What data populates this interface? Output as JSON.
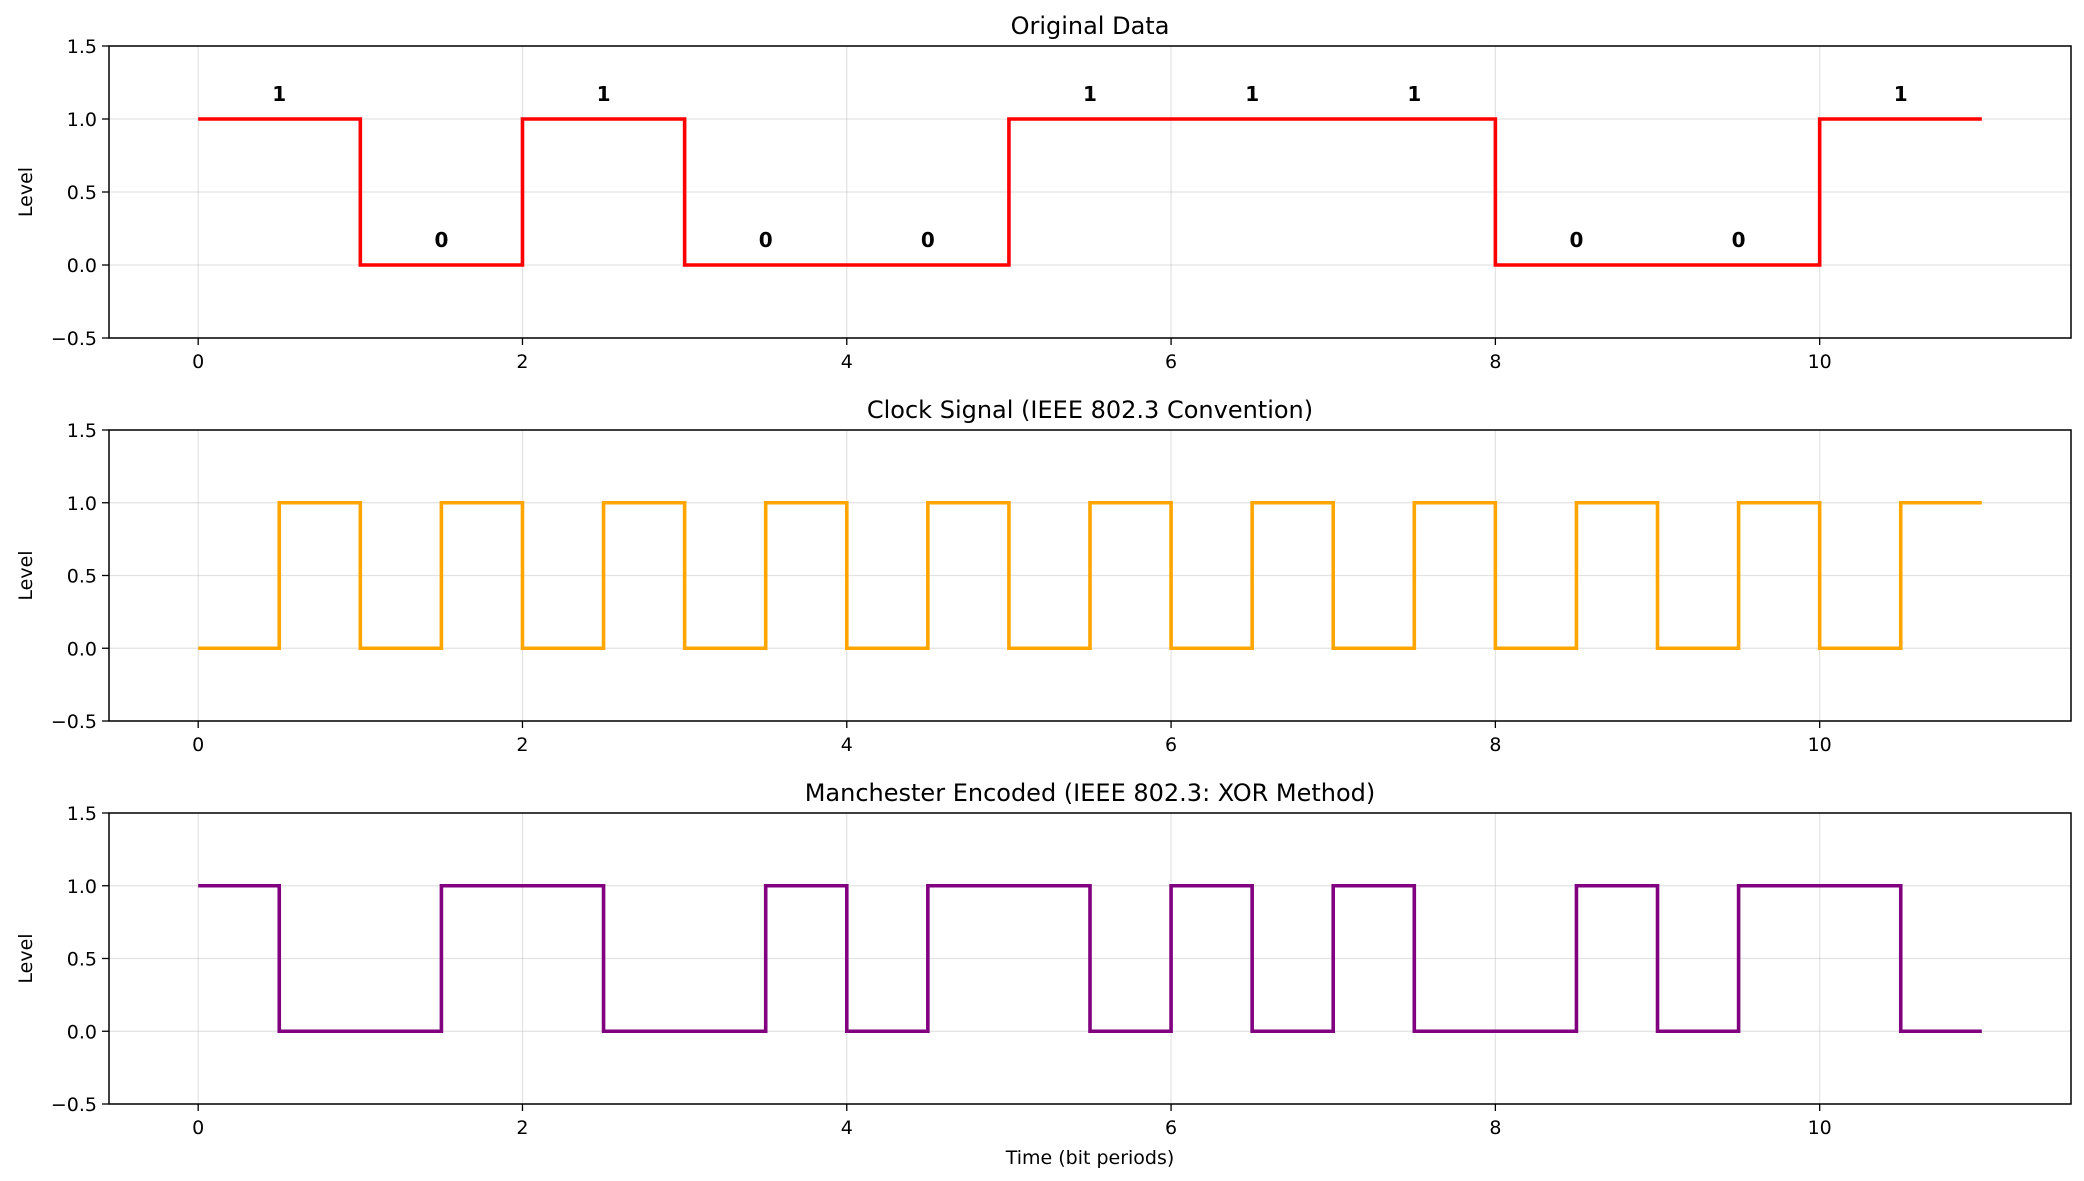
{
  "chart_data": [
    {
      "type": "line",
      "step": true,
      "title": "Original Data",
      "xlabel": "",
      "ylabel": "Level",
      "xlim": [
        -0.55,
        11.55
      ],
      "ylim": [
        -0.5,
        1.5
      ],
      "xticks": [
        0,
        2,
        4,
        6,
        8,
        10
      ],
      "yticks": [
        "−0.5",
        "0.0",
        "0.5",
        "1.0",
        "1.5"
      ],
      "yticks_values": [
        -0.5,
        0.0,
        0.5,
        1.0,
        1.5
      ],
      "grid": true,
      "series": [
        {
          "color": "#ff0000",
          "x": [
            0,
            1,
            2,
            3,
            4,
            5,
            6,
            7,
            8,
            9,
            10,
            11
          ],
          "y": [
            1,
            0,
            1,
            0,
            0,
            1,
            1,
            1,
            0,
            0,
            1,
            1
          ]
        }
      ],
      "annotations": [
        {
          "x": 0.5,
          "text": "1"
        },
        {
          "x": 1.5,
          "text": "0"
        },
        {
          "x": 2.5,
          "text": "1"
        },
        {
          "x": 3.5,
          "text": "0"
        },
        {
          "x": 4.5,
          "text": "0"
        },
        {
          "x": 5.5,
          "text": "1"
        },
        {
          "x": 6.5,
          "text": "1"
        },
        {
          "x": 7.5,
          "text": "1"
        },
        {
          "x": 8.5,
          "text": "0"
        },
        {
          "x": 9.5,
          "text": "0"
        },
        {
          "x": 10.5,
          "text": "1"
        }
      ]
    },
    {
      "type": "line",
      "step": true,
      "title": "Clock Signal (IEEE 802.3 Convention)",
      "xlabel": "",
      "ylabel": "Level",
      "xlim": [
        -0.55,
        11.55
      ],
      "ylim": [
        -0.5,
        1.5
      ],
      "xticks": [
        0,
        2,
        4,
        6,
        8,
        10
      ],
      "yticks": [
        "−0.5",
        "0.0",
        "0.5",
        "1.0",
        "1.5"
      ],
      "yticks_values": [
        -0.5,
        0.0,
        0.5,
        1.0,
        1.5
      ],
      "grid": true,
      "series": [
        {
          "color": "#ffa500",
          "x": [
            0,
            0.5,
            1,
            1.5,
            2,
            2.5,
            3,
            3.5,
            4,
            4.5,
            5,
            5.5,
            6,
            6.5,
            7,
            7.5,
            8,
            8.5,
            9,
            9.5,
            10,
            10.5,
            11
          ],
          "y": [
            0,
            1,
            0,
            1,
            0,
            1,
            0,
            1,
            0,
            1,
            0,
            1,
            0,
            1,
            0,
            1,
            0,
            1,
            0,
            1,
            0,
            1,
            1
          ]
        }
      ],
      "annotations": []
    },
    {
      "type": "line",
      "step": true,
      "title": "Manchester Encoded (IEEE 802.3: XOR Method)",
      "xlabel": "Time (bit periods)",
      "ylabel": "Level",
      "xlim": [
        -0.55,
        11.55
      ],
      "ylim": [
        -0.5,
        1.5
      ],
      "xticks": [
        0,
        2,
        4,
        6,
        8,
        10
      ],
      "yticks": [
        "−0.5",
        "0.0",
        "0.5",
        "1.0",
        "1.5"
      ],
      "yticks_values": [
        -0.5,
        0.0,
        0.5,
        1.0,
        1.5
      ],
      "grid": true,
      "series": [
        {
          "color": "#800080",
          "x": [
            0,
            0.5,
            1,
            1.5,
            2,
            2.5,
            3,
            3.5,
            4,
            4.5,
            5,
            5.5,
            6,
            6.5,
            7,
            7.5,
            8,
            8.5,
            9,
            9.5,
            10,
            10.5,
            11
          ],
          "y": [
            1,
            0,
            0,
            1,
            1,
            0,
            0,
            1,
            0,
            1,
            1,
            0,
            1,
            0,
            1,
            0,
            0,
            1,
            0,
            1,
            1,
            0,
            0
          ]
        }
      ],
      "annotations": []
    }
  ]
}
